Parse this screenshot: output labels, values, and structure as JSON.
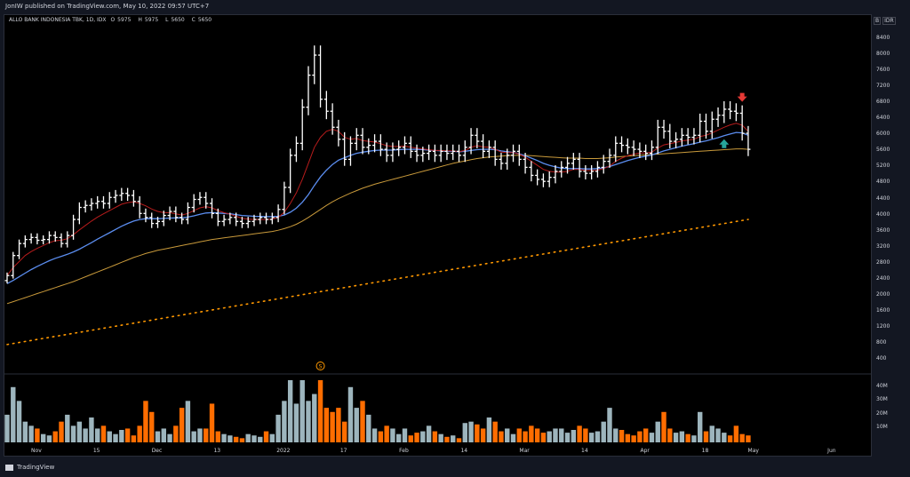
{
  "topbar": {
    "text": "JonIW published on TradingView.com, May 10, 2022 09:57 UTC+7"
  },
  "legend": {
    "symbol": "ALLO BANK INDONESIA TBK, 1D, IDX",
    "o_label": "O",
    "o": "5975",
    "h_label": "H",
    "h": "5975",
    "l_label": "L",
    "l": "5650",
    "c_label": "C",
    "c": "5650"
  },
  "currency": {
    "badge1": "B",
    "badge2": "IDR"
  },
  "footer": {
    "brand": "TradingView"
  },
  "colors": {
    "background": "#000000",
    "bars": "#ffffff",
    "ma_fast": "#b71c1c",
    "ma_mid": "#5b8def",
    "ma_slow": "#c99a3b",
    "ma_dotted": "#ff9800",
    "vol_up": "#9db5bd",
    "vol_down": "#ff6d00",
    "arrow_down": "#e53935",
    "arrow_up": "#26a69a",
    "event_marker": "#ff9800"
  },
  "chart_data": {
    "type": "bar",
    "price_ticks": [
      8400,
      8000,
      7600,
      7200,
      6800,
      6400,
      6000,
      5600,
      5200,
      4800,
      4400,
      4000,
      3600,
      3200,
      2800,
      2400,
      2000,
      1600,
      1200,
      800,
      400
    ],
    "volume_ticks": [
      "40M",
      "30M",
      "20M",
      "10M"
    ],
    "time_labels": [
      "Nov",
      "15",
      "Dec",
      "13",
      "2022",
      "17",
      "Feb",
      "14",
      "Mar",
      "14",
      "Apr",
      "18",
      "May",
      "Jun"
    ],
    "time_label_idx": [
      5,
      15,
      25,
      35,
      46,
      56,
      66,
      76,
      86,
      96,
      106,
      116,
      124,
      137
    ],
    "event_marker": {
      "label": "S",
      "idx": 52
    },
    "arrows": [
      {
        "dir": "down",
        "idx": 122
      },
      {
        "dir": "up",
        "idx": 119
      }
    ],
    "close": [
      2500,
      3000,
      3300,
      3400,
      3450,
      3380,
      3400,
      3500,
      3450,
      3300,
      3500,
      3900,
      4200,
      4250,
      4300,
      4350,
      4300,
      4450,
      4500,
      4550,
      4500,
      4350,
      4050,
      3950,
      3800,
      3850,
      4000,
      4100,
      3950,
      3900,
      4200,
      4400,
      4450,
      4300,
      4050,
      3850,
      3900,
      3950,
      3850,
      3800,
      3850,
      3900,
      3950,
      3900,
      3950,
      4150,
      4700,
      5500,
      5800,
      6700,
      7500,
      8000,
      6900,
      6600,
      6200,
      5900,
      5400,
      5800,
      6000,
      5700,
      5750,
      5850,
      5650,
      5500,
      5650,
      5700,
      5800,
      5600,
      5500,
      5550,
      5600,
      5500,
      5600,
      5550,
      5600,
      5500,
      5700,
      6000,
      5850,
      5600,
      5700,
      5400,
      5300,
      5500,
      5600,
      5400,
      5200,
      5000,
      4900,
      4850,
      4950,
      5100,
      5200,
      5300,
      5400,
      5100,
      5050,
      5100,
      5200,
      5350,
      5500,
      5800,
      5750,
      5700,
      5650,
      5600,
      5550,
      5700,
      6200,
      6100,
      5850,
      5900,
      6000,
      5950,
      6000,
      6350,
      6100,
      6400,
      6500,
      6650,
      6600,
      6550,
      6050,
      5650
    ],
    "volume_m": [
      20,
      40,
      30,
      15,
      12,
      10,
      6,
      5,
      8,
      15,
      20,
      12,
      15,
      10,
      18,
      10,
      12,
      8,
      6,
      9,
      10,
      5,
      12,
      30,
      22,
      8,
      10,
      6,
      12,
      25,
      30,
      8,
      10,
      10,
      28,
      8,
      6,
      5,
      4,
      3,
      6,
      5,
      4,
      8,
      6,
      20,
      30,
      45,
      28,
      45,
      30,
      35,
      45,
      25,
      22,
      25,
      15,
      40,
      25,
      30,
      20,
      10,
      8,
      12,
      10,
      6,
      10,
      5,
      7,
      8,
      12,
      8,
      6,
      4,
      5,
      3,
      14,
      15,
      13,
      10,
      18,
      15,
      8,
      10,
      6,
      10,
      8,
      12,
      10,
      7,
      8,
      10,
      10,
      7,
      9,
      12,
      10,
      7,
      8,
      15,
      25,
      10,
      9,
      6,
      5,
      8,
      10,
      7,
      15,
      22,
      10,
      7,
      8,
      6,
      5,
      22,
      8,
      12,
      10,
      7,
      5,
      12,
      6,
      5
    ],
    "ma_fast": [
      2500,
      2700,
      2850,
      3000,
      3100,
      3180,
      3250,
      3320,
      3370,
      3380,
      3420,
      3520,
      3640,
      3750,
      3860,
      3960,
      4040,
      4120,
      4200,
      4280,
      4320,
      4340,
      4300,
      4240,
      4160,
      4100,
      4070,
      4070,
      4040,
      4010,
      4050,
      4120,
      4190,
      4220,
      4190,
      4120,
      4070,
      4030,
      3980,
      3930,
      3910,
      3900,
      3900,
      3900,
      3910,
      3950,
      4080,
      4300,
      4560,
      4900,
      5300,
      5700,
      5950,
      6100,
      6150,
      6100,
      5950,
      5900,
      5920,
      5870,
      5850,
      5830,
      5790,
      5740,
      5720,
      5720,
      5730,
      5700,
      5680,
      5660,
      5640,
      5620,
      5620,
      5610,
      5610,
      5590,
      5620,
      5700,
      5740,
      5710,
      5700,
      5650,
      5580,
      5570,
      5570,
      5530,
      5450,
      5350,
      5250,
      5150,
      5100,
      5080,
      5080,
      5100,
      5150,
      5150,
      5120,
      5120,
      5130,
      5170,
      5230,
      5350,
      5430,
      5490,
      5530,
      5560,
      5560,
      5580,
      5680,
      5760,
      5790,
      5820,
      5860,
      5880,
      5900,
      5970,
      6000,
      6060,
      6130,
      6200,
      6260,
      6300,
      6250,
      6100
    ],
    "ma_mid": [
      2300,
      2380,
      2470,
      2560,
      2650,
      2730,
      2800,
      2870,
      2930,
      2980,
      3030,
      3090,
      3160,
      3240,
      3320,
      3410,
      3490,
      3570,
      3650,
      3730,
      3800,
      3860,
      3900,
      3920,
      3920,
      3920,
      3925,
      3935,
      3940,
      3940,
      3960,
      3990,
      4030,
      4060,
      4070,
      4060,
      4050,
      4040,
      4020,
      4000,
      3990,
      3980,
      3975,
      3970,
      3970,
      3980,
      4010,
      4080,
      4180,
      4330,
      4520,
      4750,
      4960,
      5130,
      5270,
      5380,
      5440,
      5500,
      5550,
      5580,
      5600,
      5620,
      5630,
      5630,
      5630,
      5640,
      5650,
      5650,
      5650,
      5640,
      5630,
      5620,
      5610,
      5600,
      5600,
      5590,
      5600,
      5620,
      5640,
      5650,
      5650,
      5640,
      5610,
      5590,
      5570,
      5540,
      5490,
      5430,
      5370,
      5300,
      5250,
      5210,
      5180,
      5170,
      5170,
      5170,
      5160,
      5160,
      5170,
      5190,
      5220,
      5270,
      5320,
      5370,
      5410,
      5450,
      5480,
      5510,
      5560,
      5610,
      5650,
      5690,
      5730,
      5760,
      5790,
      5830,
      5860,
      5900,
      5940,
      5990,
      6030,
      6070,
      6060,
      6000
    ],
    "ma_slow": [
      1800,
      1850,
      1900,
      1950,
      2000,
      2050,
      2100,
      2150,
      2200,
      2250,
      2300,
      2350,
      2410,
      2470,
      2530,
      2590,
      2650,
      2710,
      2770,
      2830,
      2890,
      2950,
      3000,
      3050,
      3090,
      3130,
      3160,
      3190,
      3220,
      3250,
      3280,
      3310,
      3340,
      3370,
      3400,
      3420,
      3440,
      3460,
      3480,
      3500,
      3520,
      3540,
      3560,
      3580,
      3600,
      3630,
      3670,
      3720,
      3780,
      3860,
      3950,
      4050,
      4150,
      4250,
      4340,
      4420,
      4490,
      4560,
      4620,
      4680,
      4730,
      4780,
      4820,
      4860,
      4900,
      4940,
      4980,
      5020,
      5060,
      5100,
      5140,
      5180,
      5220,
      5260,
      5300,
      5330,
      5360,
      5390,
      5420,
      5440,
      5460,
      5470,
      5480,
      5490,
      5500,
      5500,
      5500,
      5490,
      5480,
      5470,
      5460,
      5450,
      5440,
      5430,
      5430,
      5430,
      5420,
      5420,
      5420,
      5430,
      5440,
      5460,
      5470,
      5480,
      5490,
      5500,
      5510,
      5520,
      5530,
      5540,
      5550,
      5560,
      5570,
      5580,
      5590,
      5600,
      5610,
      5620,
      5630,
      5640,
      5650,
      5660,
      5660,
      5650
    ],
    "ma_dotted_start": 780,
    "ma_dotted_end": 3900
  }
}
